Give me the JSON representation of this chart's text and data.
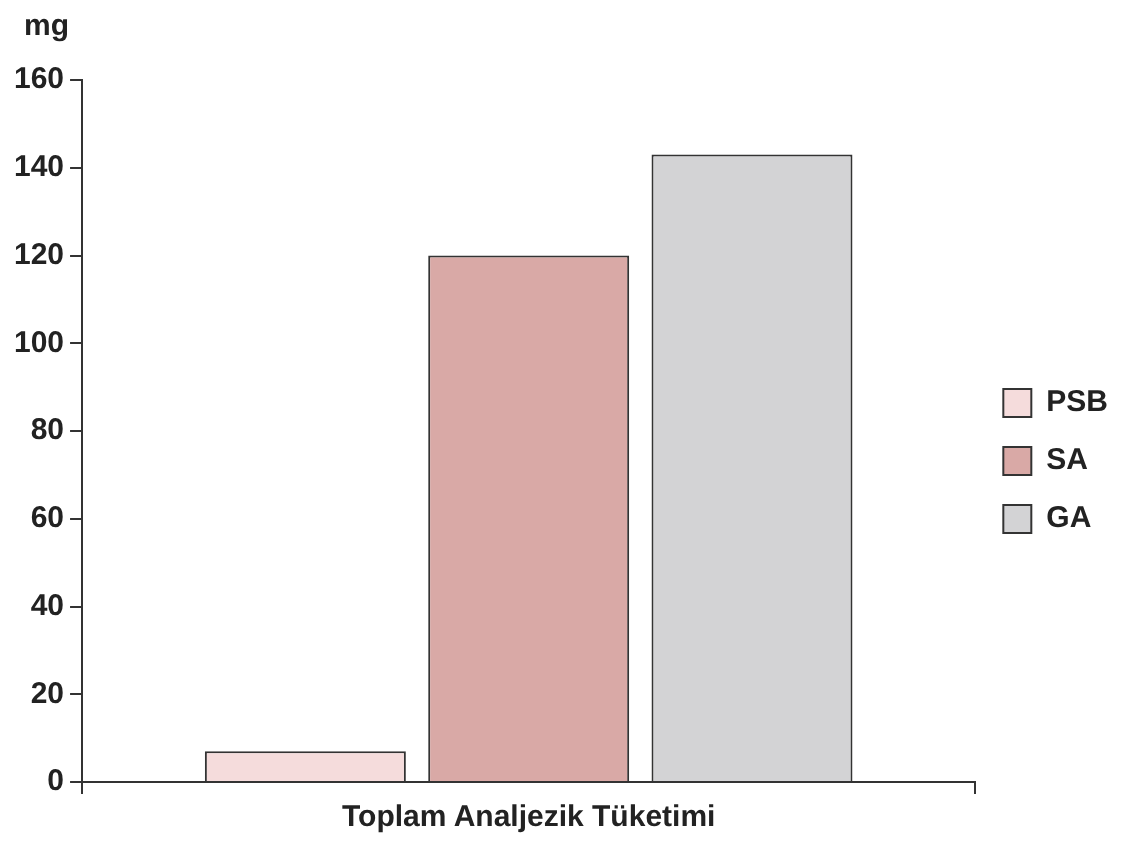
{
  "chart_data": {
    "type": "bar",
    "ylabel": "mg",
    "categories": [
      "Toplam Analjezik Tüketimi"
    ],
    "series": [
      {
        "name": "PSB",
        "color": "#f5dcdc",
        "values": [
          7
        ]
      },
      {
        "name": "SA",
        "color": "#d9a9a6",
        "values": [
          120
        ]
      },
      {
        "name": "GA",
        "color": "#d3d3d5",
        "values": [
          143
        ]
      }
    ],
    "ylim": [
      0,
      160
    ],
    "yticks": [
      0,
      20,
      40,
      60,
      80,
      100,
      120,
      140,
      160
    ],
    "grid": false,
    "legend": "right"
  }
}
